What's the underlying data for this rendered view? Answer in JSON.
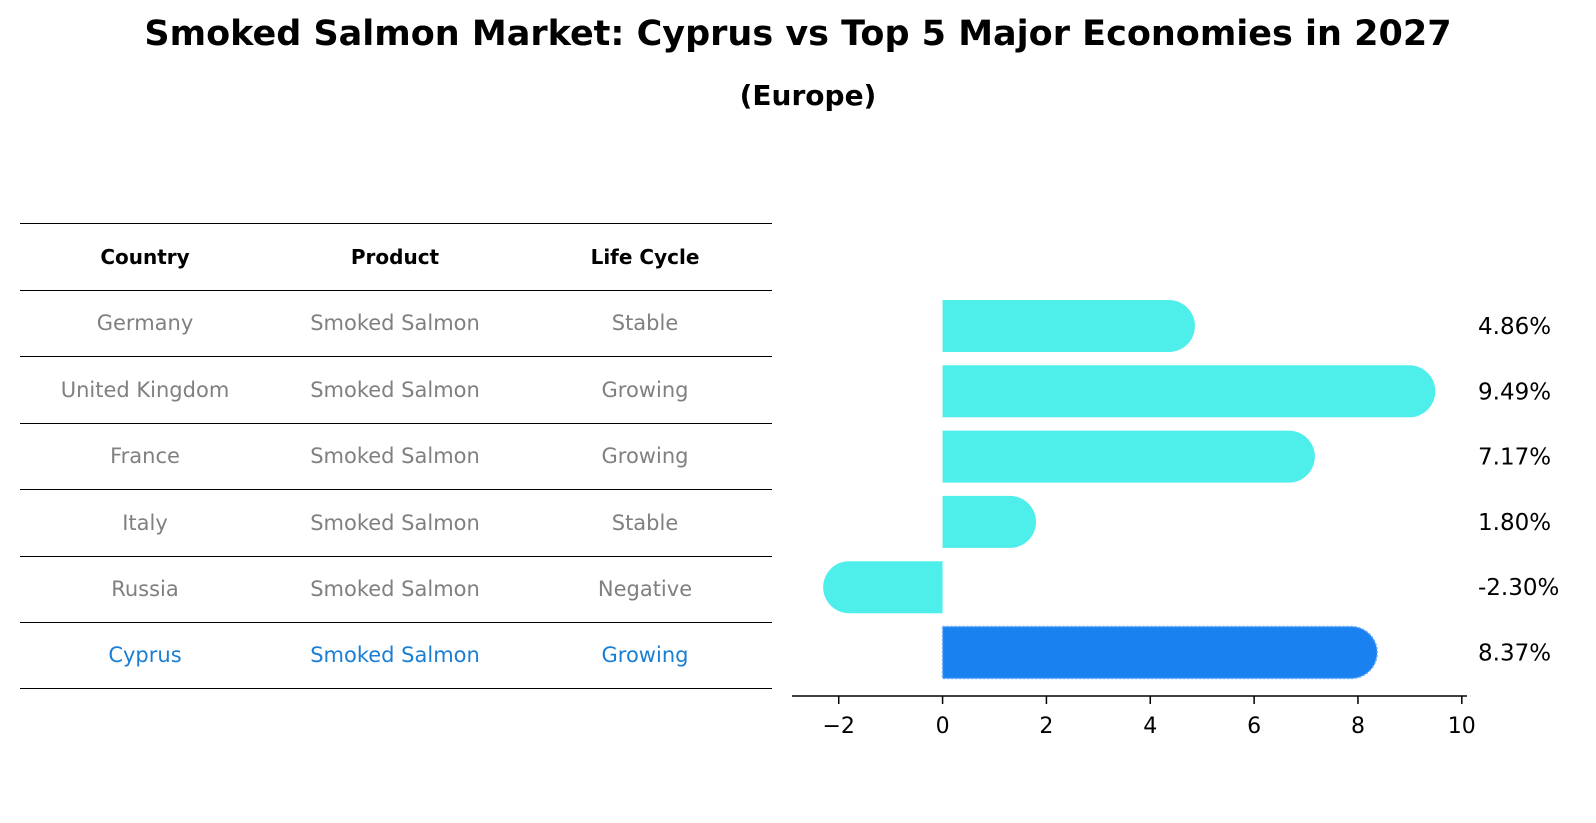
{
  "title": "Smoked Salmon Market: Cyprus vs Top 5 Major Economies in 2027",
  "subtitle": "(Europe)",
  "table": {
    "headers": [
      "Country",
      "Product",
      "Life Cycle"
    ],
    "rows": [
      {
        "country": "Germany",
        "product": "Smoked Salmon",
        "life_cycle": "Stable"
      },
      {
        "country": "United Kingdom",
        "product": "Smoked Salmon",
        "life_cycle": "Growing"
      },
      {
        "country": "France",
        "product": "Smoked Salmon",
        "life_cycle": "Growing"
      },
      {
        "country": "Italy",
        "product": "Smoked Salmon",
        "life_cycle": "Stable"
      },
      {
        "country": "Russia",
        "product": "Smoked Salmon",
        "life_cycle": "Negative"
      },
      {
        "country": "Cyprus",
        "product": "Smoked Salmon",
        "life_cycle": "Growing"
      }
    ]
  },
  "chart_data": {
    "type": "bar",
    "orientation": "horizontal",
    "categories": [
      "Germany",
      "United Kingdom",
      "France",
      "Italy",
      "Russia",
      "Cyprus"
    ],
    "values": [
      4.86,
      9.49,
      7.17,
      1.8,
      -2.3,
      8.37
    ],
    "value_labels": [
      "4.86%",
      "9.49%",
      "7.17%",
      "1.80%",
      "-2.30%",
      "8.37%"
    ],
    "highlight_category": "Cyprus",
    "xlim": [
      -2.9,
      10.1
    ],
    "xticks": [
      -2,
      0,
      2,
      4,
      6,
      8,
      10
    ],
    "xtick_labels": [
      "−2",
      "0",
      "2",
      "4",
      "6",
      "8",
      "10"
    ],
    "colors": {
      "default": "#4eeeeb",
      "highlight": "#1a82f0"
    }
  }
}
